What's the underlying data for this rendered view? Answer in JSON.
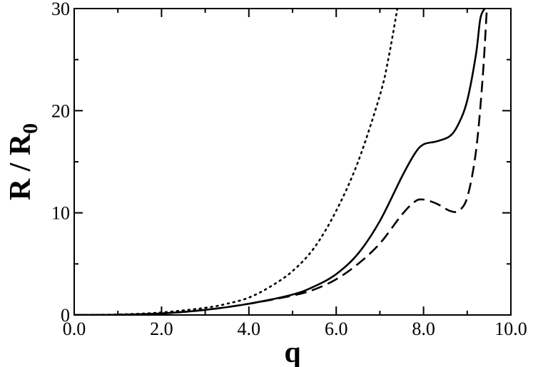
{
  "chart_data": {
    "type": "line",
    "xlabel": "q",
    "ylabel": {
      "main": "R / R",
      "subscript": "0"
    },
    "xlim": [
      0,
      10
    ],
    "ylim": [
      0,
      30
    ],
    "x_ticks": [
      {
        "value": 0,
        "label": "0.0"
      },
      {
        "value": 2,
        "label": "2.0"
      },
      {
        "value": 4,
        "label": "4.0"
      },
      {
        "value": 6,
        "label": "6.0"
      },
      {
        "value": 8,
        "label": "8.0"
      },
      {
        "value": 10,
        "label": "10.0"
      }
    ],
    "y_ticks": [
      {
        "value": 0,
        "label": "0"
      },
      {
        "value": 10,
        "label": "10"
      },
      {
        "value": 20,
        "label": "20"
      },
      {
        "value": 30,
        "label": "30"
      }
    ],
    "grid": false,
    "legend": "none",
    "series": [
      {
        "style": "solid",
        "color": "#000000",
        "x": [
          0,
          1,
          2,
          3,
          4,
          5,
          5.5,
          6,
          6.5,
          7,
          7.5,
          7.8,
          8,
          8.3,
          8.6,
          8.8,
          9,
          9.2,
          9.3,
          9.4
        ],
        "y": [
          0,
          0.02,
          0.15,
          0.5,
          1.1,
          2.0,
          2.8,
          4.0,
          6.0,
          9.2,
          13.5,
          15.8,
          16.7,
          17.0,
          17.5,
          18.7,
          21.0,
          25.5,
          29.0,
          30.0
        ]
      },
      {
        "style": "dashed",
        "color": "#000000",
        "x": [
          0,
          1,
          2,
          3,
          4,
          5,
          5.5,
          6,
          6.5,
          7,
          7.5,
          7.8,
          8,
          8.3,
          8.6,
          8.8,
          9,
          9.2,
          9.35,
          9.45
        ],
        "y": [
          0,
          0.02,
          0.15,
          0.5,
          1.1,
          1.9,
          2.5,
          3.5,
          5.0,
          7.0,
          9.8,
          11.1,
          11.3,
          10.9,
          10.2,
          10.2,
          11.5,
          16.0,
          23.0,
          30.0
        ]
      },
      {
        "style": "dotted",
        "color": "#000000",
        "x": [
          0,
          1,
          2,
          3,
          3.5,
          4,
          4.5,
          5,
          5.5,
          6,
          6.5,
          7,
          7.2,
          7.4
        ],
        "y": [
          0,
          0.05,
          0.25,
          0.7,
          1.1,
          1.7,
          2.8,
          4.3,
          6.6,
          10.2,
          15.0,
          21.5,
          25.2,
          30.0
        ]
      }
    ]
  }
}
